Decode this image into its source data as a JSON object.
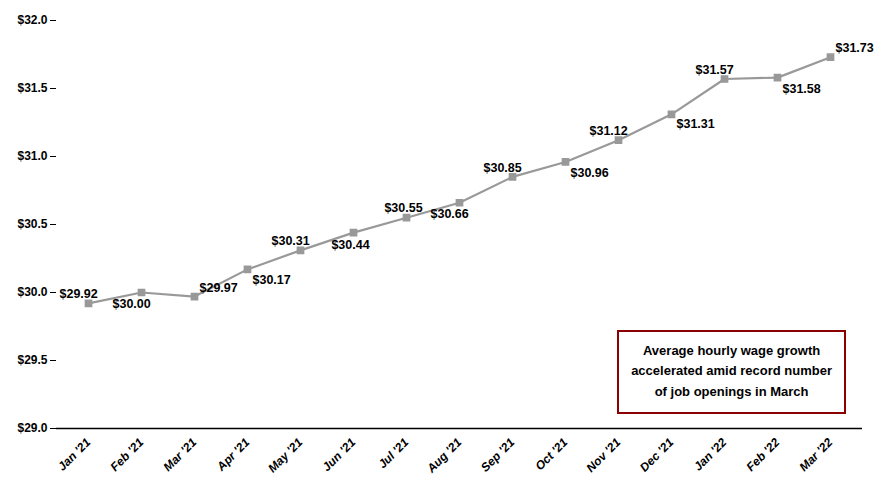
{
  "chart_data": {
    "type": "line",
    "categories": [
      "Jan '21",
      "Feb '21",
      "Mar '21",
      "Apr '21",
      "May '21",
      "Jun '21",
      "Jul '21",
      "Aug '21",
      "Sep '21",
      "Oct '21",
      "Nov '21",
      "Dec '21",
      "Jan '22",
      "Feb '22",
      "Mar '22"
    ],
    "values": [
      29.92,
      30.0,
      29.97,
      30.17,
      30.31,
      30.44,
      30.55,
      30.66,
      30.85,
      30.96,
      31.12,
      31.31,
      31.57,
      31.58,
      31.73
    ],
    "value_labels": [
      "$29.92",
      "$30.00",
      "$29.97",
      "$30.17",
      "$30.31",
      "$30.44",
      "$30.55",
      "$30.66",
      "$30.85",
      "$30.96",
      "$31.12",
      "$31.31",
      "$31.57",
      "$31.58",
      "$31.73"
    ],
    "data_labels": true,
    "color": "#999999",
    "marker": "square",
    "ylim": [
      29.0,
      32.0
    ],
    "yticks": [
      {
        "value": 29.0,
        "label": "$29.0"
      },
      {
        "value": 29.5,
        "label": "$29.5"
      },
      {
        "value": 30.0,
        "label": "$30.0"
      },
      {
        "value": 30.5,
        "label": "$30.5"
      },
      {
        "value": 31.0,
        "label": "$31.0"
      },
      {
        "value": 31.5,
        "label": "$31.5"
      },
      {
        "value": 32.0,
        "label": "$32.0"
      }
    ],
    "grid": false,
    "annotation": "Average hourly wage growth\naccelerated amid record number\nof job openings in March"
  }
}
